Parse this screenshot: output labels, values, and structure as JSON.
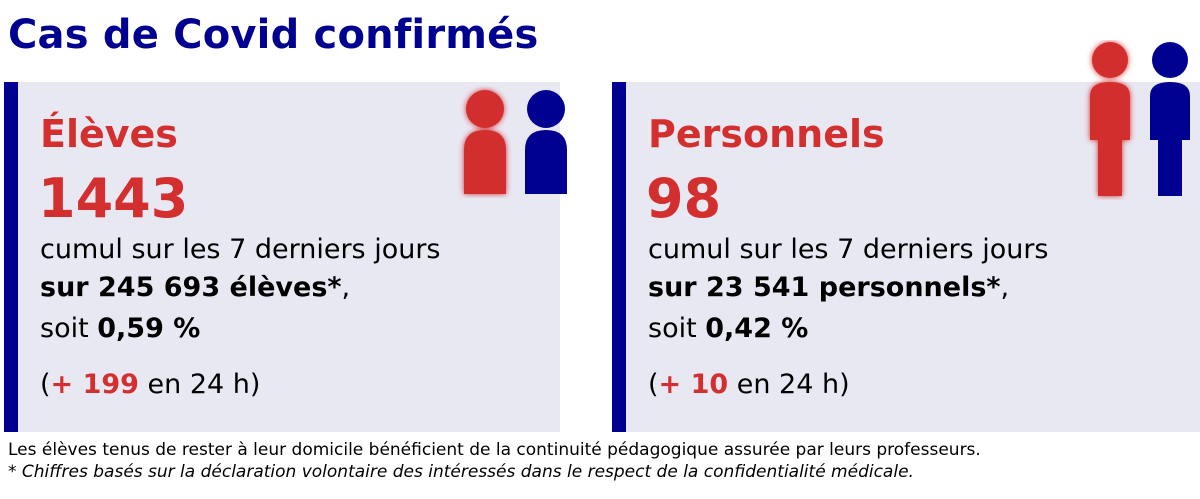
{
  "title": "Cas de Covid confirmés",
  "cards": [
    {
      "label": "Élèves",
      "count": "1443",
      "line1": "cumul sur les 7 derniers jours",
      "line2": "sur 245 693 élèves*",
      "line2_suffix": ",",
      "line3_prefix": "soit ",
      "percent": "0,59 %",
      "delta_open": "(",
      "delta": "+ 199",
      "delta_suffix": " en 24 h)"
    },
    {
      "label": "Personnels",
      "count": "98",
      "line1": "cumul sur les 7 derniers jours",
      "line2": "sur 23 541 personnels*",
      "line2_suffix": ",",
      "line3_prefix": "soit ",
      "percent": "0,42 %",
      "delta_open": "(",
      "delta": "+ 10",
      "delta_suffix": " en 24 h)"
    }
  ],
  "footnotes": {
    "line1": "Les élèves tenus de rester à leur domicile bénéficient de la continuité pédagogique assurée par leurs professeurs.",
    "line2": "* Chiffres basés sur la déclaration volontaire des intéressés dans le respect de la confidentialité médicale."
  },
  "icons": {
    "student_icon": "two-children-icon",
    "staff_icon": "two-adults-icon"
  },
  "colors": {
    "blue": "#000091",
    "red": "#d32f2f",
    "card_bg": "#e8e8f3"
  }
}
